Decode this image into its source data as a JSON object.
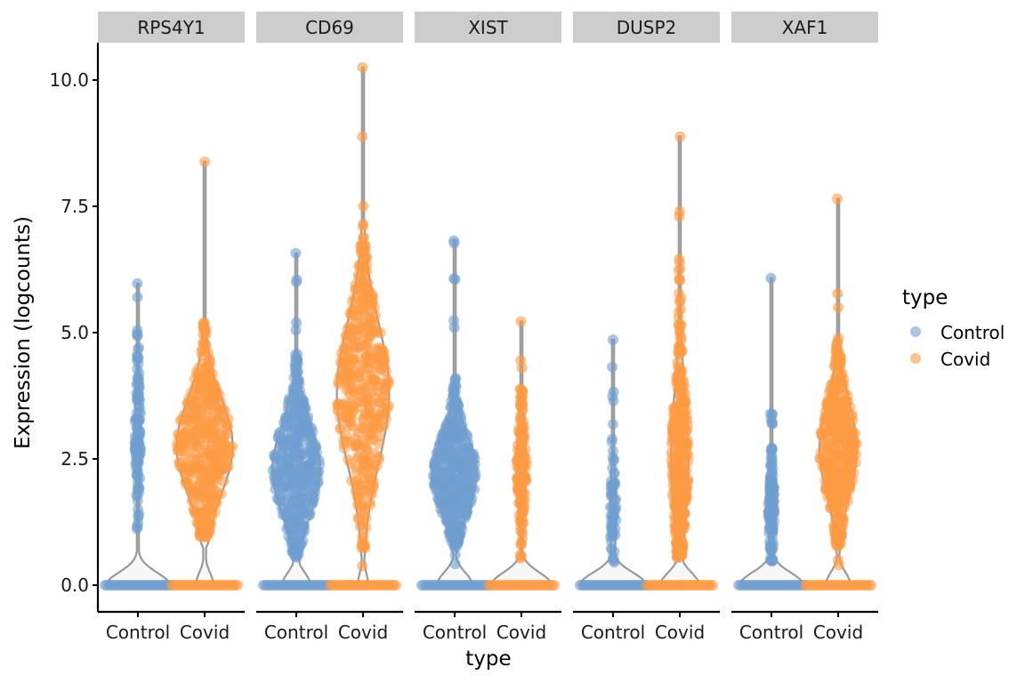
{
  "chart_data": {
    "type": "violin",
    "title": "",
    "xlabel": "type",
    "ylabel": "Expression (logcounts)",
    "ylim": [
      -0.5,
      10.8
    ],
    "yticks": [
      0.0,
      2.5,
      5.0,
      7.5,
      10.0
    ],
    "ytick_labels": [
      "0.0",
      "2.5",
      "5.0",
      "7.5",
      "10.0"
    ],
    "categories": [
      "Control",
      "Covid"
    ],
    "grid": false,
    "legend": {
      "title": "type",
      "position": "right",
      "entries": [
        {
          "label": "Control",
          "color": "#6f9fd0"
        },
        {
          "label": "Covid",
          "color": "#fd9b44"
        }
      ]
    },
    "colors": {
      "Control": "#6f9fd0",
      "Covid": "#fd9b44",
      "violin_outline": "#999999",
      "violin_fill": "#f7f7f7",
      "strip_bg": "#cccccc"
    },
    "facets": [
      {
        "gene": "RPS4Y1",
        "groups": [
          {
            "type": "Control",
            "zero_fraction": 0.9,
            "max": 5.97,
            "bulk_low": 1.0,
            "bulk_high": 5.0,
            "bulk_center": 3.0,
            "bulk_halfwidth": 0.05,
            "n_points": 120,
            "outliers": [
              5.7,
              5.05,
              4.95
            ]
          },
          {
            "type": "Covid",
            "zero_fraction": 0.25,
            "max": 8.38,
            "bulk_low": 0.95,
            "bulk_high": 5.2,
            "bulk_center": 2.75,
            "bulk_halfwidth": 0.45,
            "n_points": 2500,
            "outliers": [
              5.1,
              5.2
            ]
          }
        ]
      },
      {
        "gene": "CD69",
        "groups": [
          {
            "type": "Control",
            "zero_fraction": 0.4,
            "max": 6.57,
            "bulk_low": 0.55,
            "bulk_high": 4.6,
            "bulk_center": 2.3,
            "bulk_halfwidth": 0.38,
            "n_points": 1800,
            "outliers": [
              6.05,
              6.0,
              5.2,
              5.05
            ]
          },
          {
            "type": "Covid",
            "zero_fraction": 0.1,
            "max": 10.25,
            "bulk_low": 0.7,
            "bulk_high": 6.9,
            "bulk_center": 3.8,
            "bulk_halfwidth": 0.42,
            "n_points": 2200,
            "outliers": [
              8.88,
              7.5,
              7.15,
              7.1,
              0.38
            ]
          }
        ]
      },
      {
        "gene": "XIST",
        "groups": [
          {
            "type": "Control",
            "zero_fraction": 0.5,
            "max": 6.82,
            "bulk_low": 0.75,
            "bulk_high": 4.1,
            "bulk_center": 2.2,
            "bulk_halfwidth": 0.35,
            "n_points": 1800,
            "outliers": [
              6.77,
              6.07,
              6.05,
              5.24,
              5.1,
              0.6,
              0.42
            ]
          },
          {
            "type": "Covid",
            "zero_fraction": 0.85,
            "max": 5.22,
            "bulk_low": 0.5,
            "bulk_high": 3.9,
            "bulk_center": 2.3,
            "bulk_halfwidth": 0.08,
            "n_points": 150,
            "outliers": [
              4.45,
              4.3,
              3.85
            ]
          }
        ]
      },
      {
        "gene": "DUSP2",
        "groups": [
          {
            "type": "Control",
            "zero_fraction": 0.93,
            "max": 4.86,
            "bulk_low": 0.45,
            "bulk_high": 3.8,
            "bulk_center": 1.4,
            "bulk_halfwidth": 0.05,
            "n_points": 60,
            "outliers": [
              4.32,
              3.83,
              3.65
            ]
          },
          {
            "type": "Covid",
            "zero_fraction": 0.55,
            "max": 8.88,
            "bulk_low": 0.55,
            "bulk_high": 6.5,
            "bulk_center": 2.5,
            "bulk_halfwidth": 0.14,
            "n_points": 900,
            "outliers": [
              7.4,
              7.3,
              6.45
            ]
          }
        ]
      },
      {
        "gene": "XAF1",
        "groups": [
          {
            "type": "Control",
            "zero_fraction": 0.9,
            "max": 6.08,
            "bulk_low": 0.4,
            "bulk_high": 3.45,
            "bulk_center": 1.5,
            "bulk_halfwidth": 0.05,
            "n_points": 130,
            "outliers": [
              3.3,
              3.2
            ]
          },
          {
            "type": "Covid",
            "zero_fraction": 0.35,
            "max": 7.65,
            "bulk_low": 0.75,
            "bulk_high": 4.9,
            "bulk_center": 2.7,
            "bulk_halfwidth": 0.3,
            "n_points": 1400,
            "outliers": [
              5.77,
              5.5,
              0.5,
              0.4
            ]
          }
        ]
      }
    ]
  }
}
